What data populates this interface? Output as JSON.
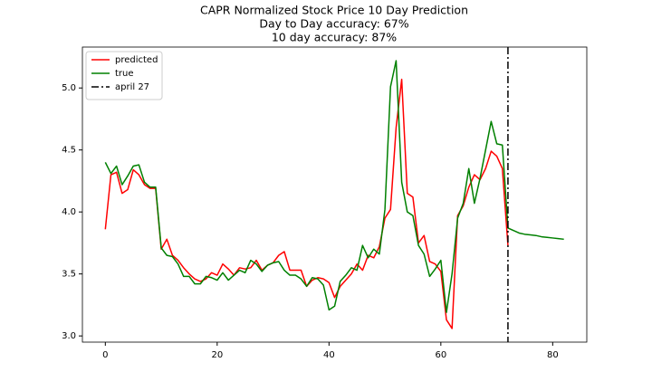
{
  "chart_data": {
    "type": "line",
    "title": "CAPR Normalized Stock Price 10 Day Prediction",
    "subtitle": [
      "Day to Day accuracy: 67%",
      "10 day accuracy: 87%"
    ],
    "x": [
      0,
      1,
      2,
      3,
      4,
      5,
      6,
      7,
      8,
      9,
      10,
      11,
      12,
      13,
      14,
      15,
      16,
      17,
      18,
      19,
      20,
      21,
      22,
      23,
      24,
      25,
      26,
      27,
      28,
      29,
      30,
      31,
      32,
      33,
      34,
      35,
      36,
      37,
      38,
      39,
      40,
      41,
      42,
      43,
      44,
      45,
      46,
      47,
      48,
      49,
      50,
      51,
      52,
      53,
      54,
      55,
      56,
      57,
      58,
      59,
      60,
      61,
      62,
      63,
      64,
      65,
      66,
      67,
      68,
      69,
      70,
      71,
      72,
      73,
      74,
      75,
      76,
      77,
      78,
      79,
      80,
      81,
      82
    ],
    "series": [
      {
        "name": "predicted",
        "color": "#ff0000",
        "values": [
          3.86,
          4.3,
          4.32,
          4.15,
          4.18,
          4.34,
          4.3,
          4.22,
          4.19,
          4.19,
          3.7,
          3.78,
          3.65,
          3.61,
          3.55,
          3.5,
          3.46,
          3.44,
          3.46,
          3.51,
          3.49,
          3.58,
          3.54,
          3.49,
          3.55,
          3.54,
          3.55,
          3.61,
          3.53,
          3.57,
          3.59,
          3.65,
          3.68,
          3.53,
          3.53,
          3.53,
          3.4,
          3.45,
          3.47,
          3.46,
          3.43,
          3.31,
          3.4,
          3.45,
          3.5,
          3.58,
          3.53,
          3.65,
          3.63,
          3.72,
          3.95,
          4.02,
          4.68,
          5.07,
          4.15,
          4.12,
          3.75,
          3.81,
          3.6,
          3.58,
          3.52,
          3.13,
          3.06,
          3.97,
          4.05,
          4.2,
          4.3,
          4.26,
          4.35,
          4.49,
          4.45,
          4.35,
          3.73,
          null,
          null,
          null,
          null,
          null,
          null,
          null,
          null,
          null,
          null
        ]
      },
      {
        "name": "true",
        "color": "#008000",
        "values": [
          4.4,
          4.31,
          4.37,
          4.22,
          4.29,
          4.37,
          4.38,
          4.24,
          4.2,
          4.2,
          3.71,
          3.65,
          3.64,
          3.58,
          3.48,
          3.48,
          3.42,
          3.42,
          3.48,
          3.47,
          3.45,
          3.51,
          3.45,
          3.49,
          3.53,
          3.51,
          3.61,
          3.58,
          3.52,
          3.57,
          3.59,
          3.6,
          3.53,
          3.49,
          3.49,
          3.46,
          3.4,
          3.47,
          3.46,
          3.41,
          3.21,
          3.24,
          3.44,
          3.49,
          3.55,
          3.53,
          3.73,
          3.63,
          3.7,
          3.66,
          4.02,
          5.01,
          5.22,
          4.24,
          4.0,
          3.97,
          3.73,
          3.66,
          3.48,
          3.54,
          3.61,
          3.19,
          3.5,
          3.95,
          4.07,
          4.35,
          4.07,
          4.27,
          4.5,
          4.73,
          4.55,
          4.54,
          3.87,
          3.85,
          3.83,
          3.82,
          3.815,
          3.81,
          3.8,
          3.795,
          3.79,
          3.785,
          3.78
        ]
      }
    ],
    "vline": {
      "x": 72,
      "name": "april 27",
      "color": "#000000",
      "style": "dashdot"
    },
    "xlim": [
      -4.1,
      86.1
    ],
    "xticks": [
      0,
      20,
      40,
      60,
      80
    ],
    "ylim": [
      2.95,
      5.33
    ],
    "yticks": [
      {
        "value": 3,
        "label": "3.0"
      },
      3.5,
      {
        "value": 4,
        "label": "4.0"
      },
      4.5,
      {
        "value": 5,
        "label": "5.0"
      }
    ],
    "grid": false,
    "legend": "upper left"
  }
}
